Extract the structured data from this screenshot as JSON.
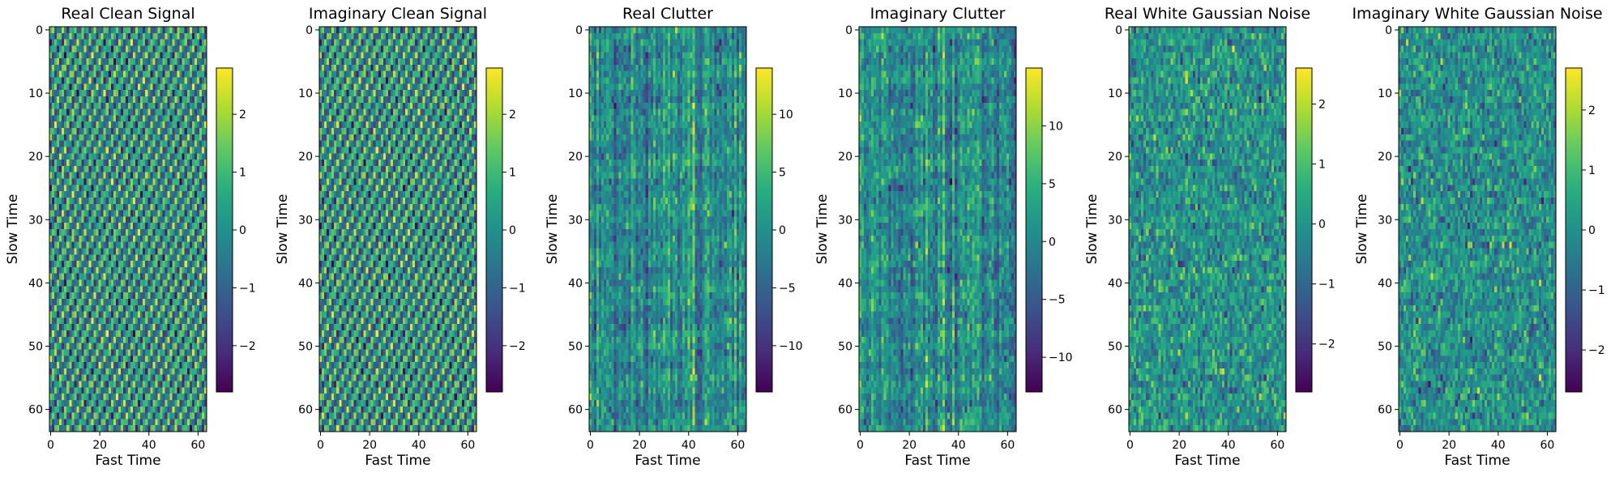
{
  "chart_data": [
    {
      "type": "heatmap",
      "title": "Real Clean Signal",
      "xlabel": "Fast Time",
      "ylabel": "Slow Time",
      "xlim": [
        0,
        64
      ],
      "ylim": [
        0,
        64
      ],
      "xticks": [
        0,
        20,
        40,
        60
      ],
      "yticks": [
        0,
        10,
        20,
        30,
        40,
        50,
        60
      ],
      "grid": "none",
      "colorbar": {
        "min": -2.8,
        "max": 2.8,
        "ticks": [
          -2,
          -1,
          0,
          1,
          2
        ],
        "tick_labels": [
          "−2",
          "−1",
          "0",
          "1",
          "2"
        ]
      },
      "pattern": "periodic",
      "std": 1.0,
      "seed": 11
    },
    {
      "type": "heatmap",
      "title": "Imaginary Clean Signal",
      "xlabel": "Fast Time",
      "ylabel": "Slow Time",
      "xlim": [
        0,
        64
      ],
      "ylim": [
        0,
        64
      ],
      "xticks": [
        0,
        20,
        40,
        60
      ],
      "yticks": [
        0,
        10,
        20,
        30,
        40,
        50,
        60
      ],
      "grid": "none",
      "colorbar": {
        "min": -2.8,
        "max": 2.8,
        "ticks": [
          -2,
          -1,
          0,
          1,
          2
        ],
        "tick_labels": [
          "−2",
          "−1",
          "0",
          "1",
          "2"
        ]
      },
      "pattern": "periodic",
      "std": 1.0,
      "seed": 23
    },
    {
      "type": "heatmap",
      "title": "Real Clutter",
      "xlabel": "Fast Time",
      "ylabel": "Slow Time",
      "xlim": [
        0,
        64
      ],
      "ylim": [
        0,
        64
      ],
      "xticks": [
        0,
        20,
        40,
        60
      ],
      "yticks": [
        0,
        10,
        20,
        30,
        40,
        50,
        60
      ],
      "grid": "none",
      "colorbar": {
        "min": -14,
        "max": 14,
        "ticks": [
          -10,
          -5,
          0,
          5,
          10
        ],
        "tick_labels": [
          "−10",
          "−5",
          "0",
          "5",
          "10"
        ]
      },
      "pattern": "clutter",
      "std": 4.0,
      "seed": 37
    },
    {
      "type": "heatmap",
      "title": "Imaginary Clutter",
      "xlabel": "Fast Time",
      "ylabel": "Slow Time",
      "xlim": [
        0,
        64
      ],
      "ylim": [
        0,
        64
      ],
      "xticks": [
        0,
        20,
        40,
        60
      ],
      "yticks": [
        0,
        10,
        20,
        30,
        40,
        50,
        60
      ],
      "grid": "none",
      "colorbar": {
        "min": -13,
        "max": 15,
        "ticks": [
          -10,
          -5,
          0,
          5,
          10
        ],
        "tick_labels": [
          "−10",
          "−5",
          "0",
          "5",
          "10"
        ]
      },
      "pattern": "clutter",
      "std": 4.0,
      "seed": 51
    },
    {
      "type": "heatmap",
      "title": "Real White Gaussian Noise",
      "xlabel": "Fast Time",
      "ylabel": "Slow Time",
      "xlim": [
        0,
        64
      ],
      "ylim": [
        0,
        64
      ],
      "xticks": [
        0,
        20,
        40,
        60
      ],
      "yticks": [
        0,
        10,
        20,
        30,
        40,
        50,
        60
      ],
      "grid": "none",
      "colorbar": {
        "min": -2.8,
        "max": 2.6,
        "ticks": [
          -2,
          -1,
          0,
          1,
          2
        ],
        "tick_labels": [
          "−2",
          "−1",
          "0",
          "1",
          "2"
        ]
      },
      "pattern": "noise",
      "std": 0.7,
      "seed": 67
    },
    {
      "type": "heatmap",
      "title": "Imaginary White Gaussian Noise",
      "xlabel": "Fast Time",
      "ylabel": "Slow Time",
      "xlim": [
        0,
        64
      ],
      "ylim": [
        0,
        64
      ],
      "xticks": [
        0,
        20,
        40,
        60
      ],
      "yticks": [
        0,
        10,
        20,
        30,
        40,
        50,
        60
      ],
      "grid": "none",
      "colorbar": {
        "min": -2.7,
        "max": 2.7,
        "ticks": [
          -2,
          -1,
          0,
          1,
          2
        ],
        "tick_labels": [
          "−2",
          "−1",
          "0",
          "1",
          "2"
        ]
      },
      "pattern": "noise",
      "std": 0.7,
      "seed": 79
    }
  ]
}
